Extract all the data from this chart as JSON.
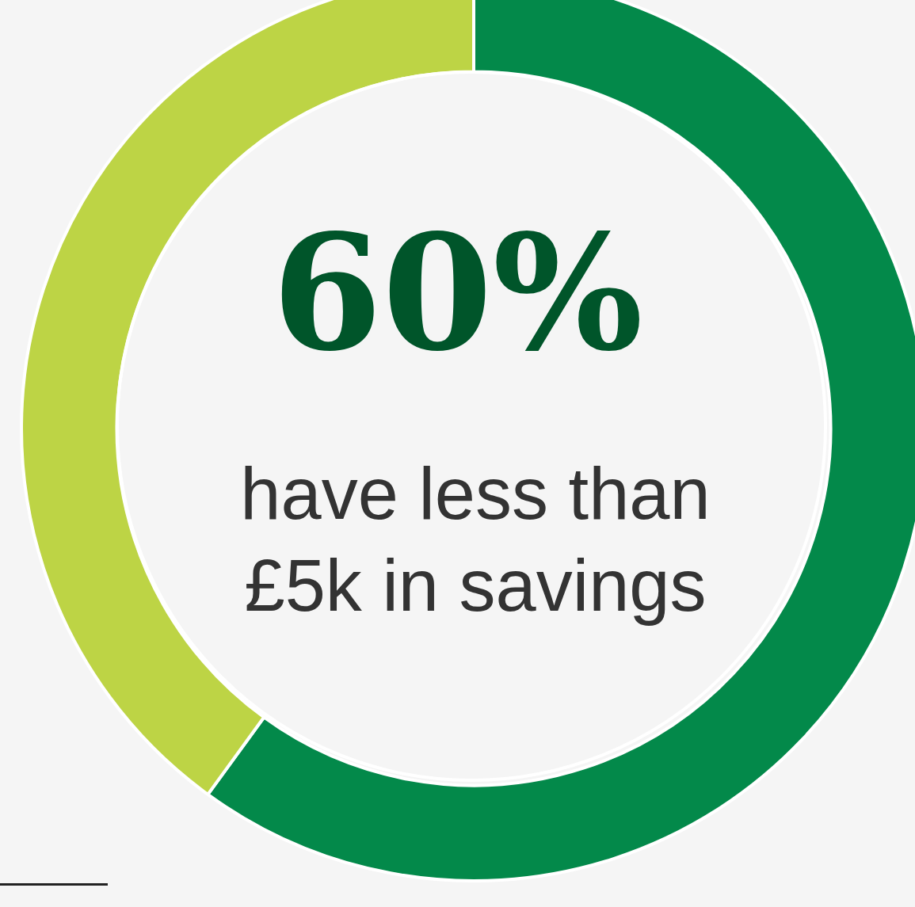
{
  "chart_data": {
    "type": "donut",
    "categories": [
      null,
      null
    ],
    "values": [
      60,
      40
    ],
    "colors": [
      "#03894a",
      "#bdd445"
    ],
    "value_labels": [
      "60%",
      null
    ],
    "annotations": [
      "have less than £5k in savings"
    ],
    "legend": false
  }
}
